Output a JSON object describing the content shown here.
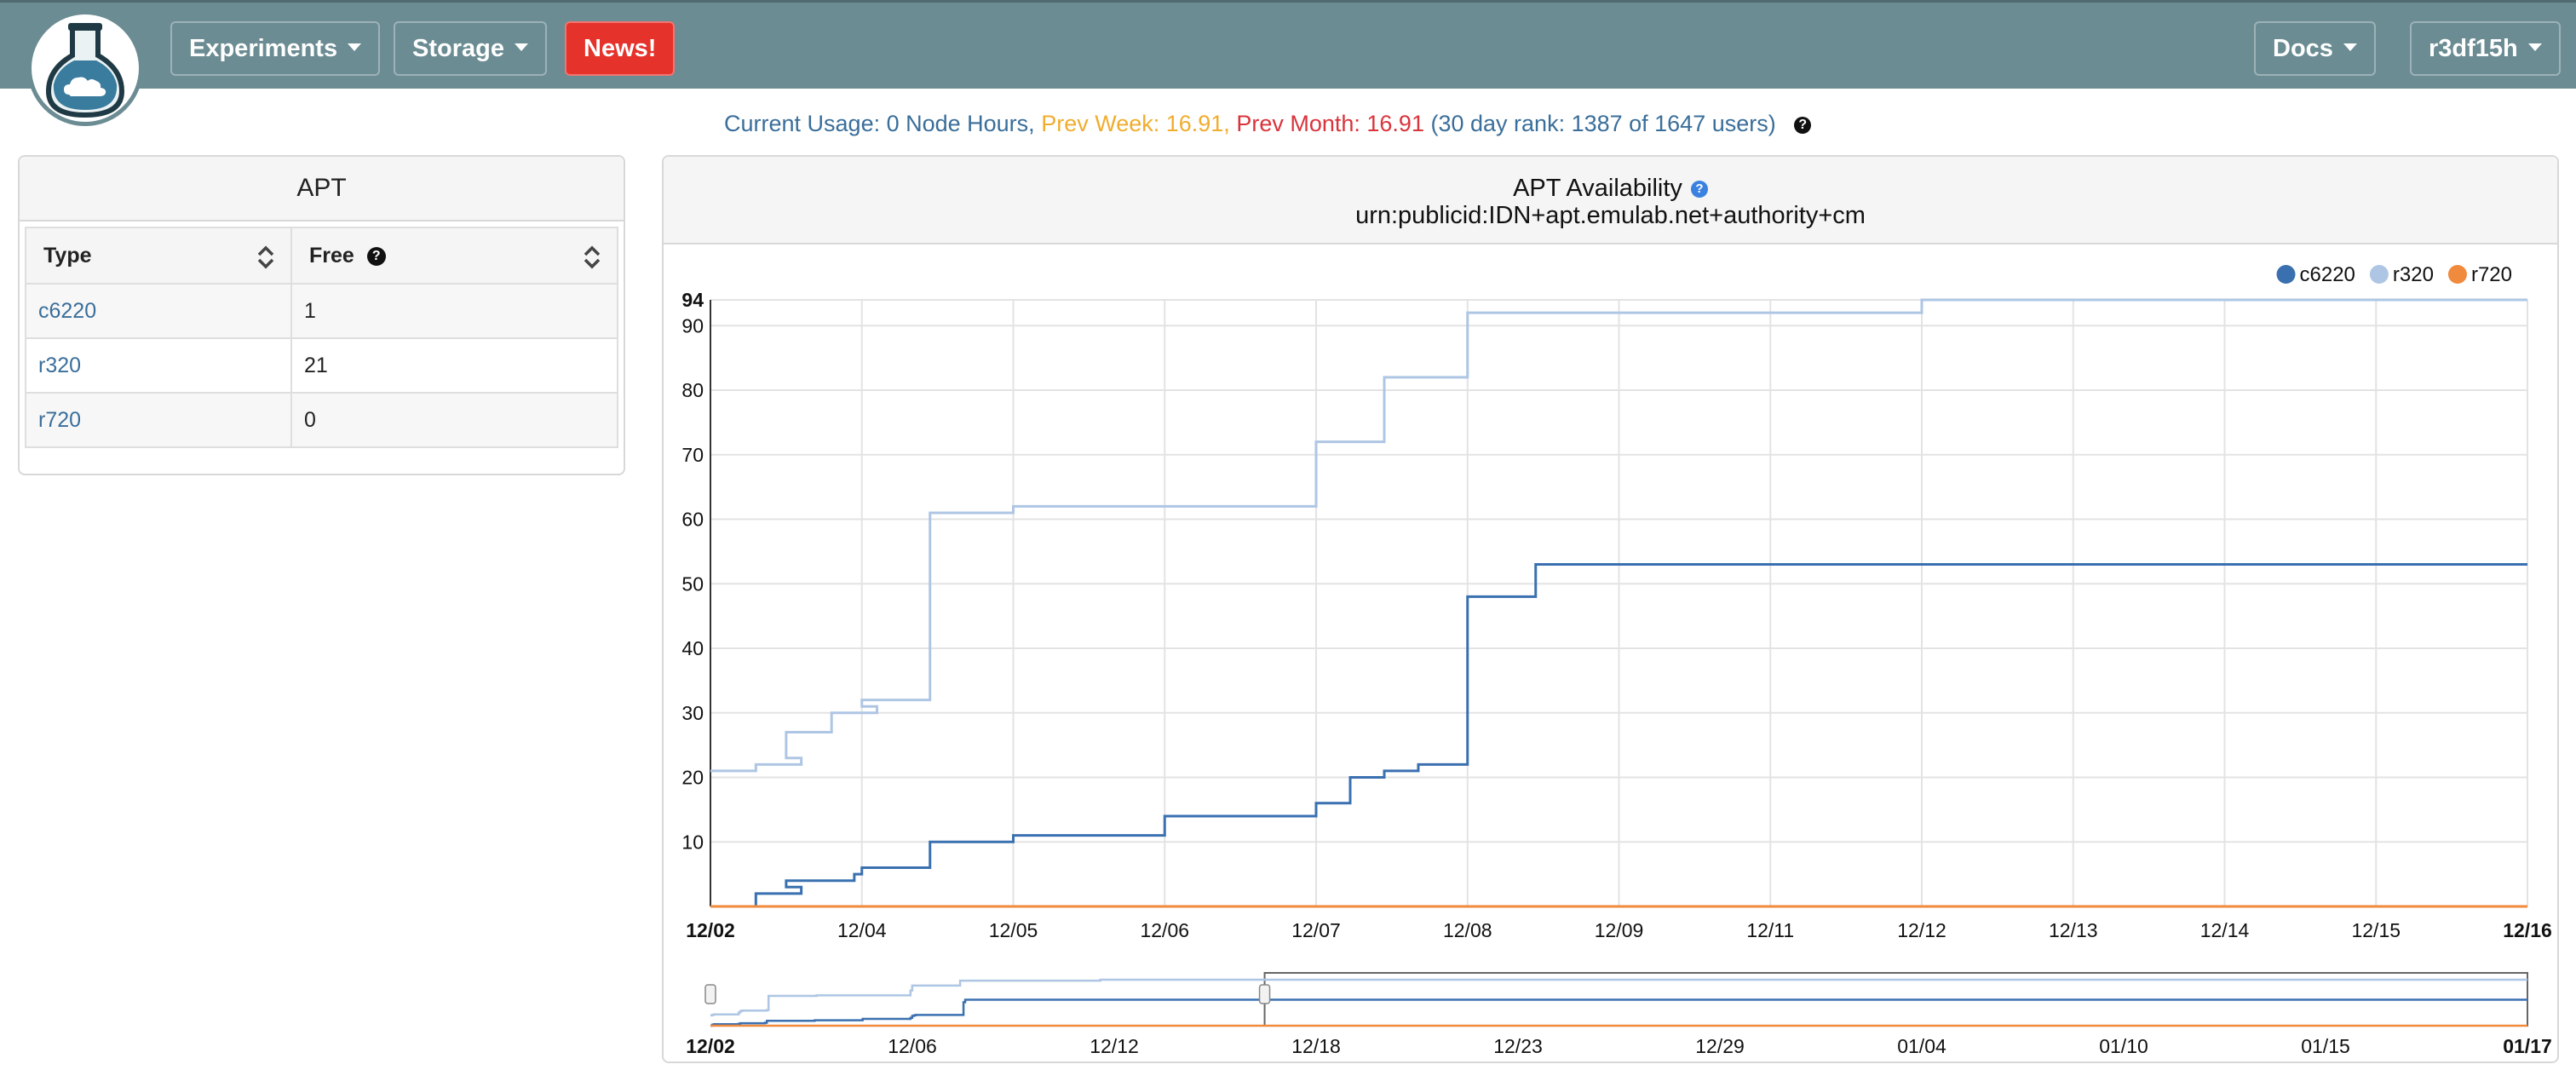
{
  "navbar": {
    "menus": [
      {
        "label": "Experiments"
      },
      {
        "label": "Storage"
      }
    ],
    "news_label": "News!",
    "docs_label": "Docs",
    "user_label": "r3df15h",
    "logo_icon": "flask-cloud-logo",
    "bg_color": "#6b8c93",
    "news_color": "#e5322b"
  },
  "usage": {
    "current": "Current Usage: 0 Node Hours,",
    "prev_week": "Prev Week: 16.91,",
    "prev_month": "Prev Month: 16.91",
    "rank": "(30 day rank: 1387 of 1647 users)",
    "help_icon": "question-circle-icon"
  },
  "left_panel": {
    "title": "APT",
    "columns": [
      "Type",
      "Free"
    ],
    "rows": [
      {
        "type": "c6220",
        "free": "1"
      },
      {
        "type": "r320",
        "free": "21"
      },
      {
        "type": "r720",
        "free": "0"
      }
    ]
  },
  "chart_panel": {
    "title": "APT Availability",
    "subtitle": "urn:publicid:IDN+apt.emulab.net+authority+cm"
  },
  "chart_data": {
    "type": "line",
    "title": "APT Availability",
    "subtitle": "urn:publicid:IDN+apt.emulab.net+authority+cm",
    "step": true,
    "legend_position": "top-right",
    "grid": true,
    "ylim": [
      0,
      94
    ],
    "y_ticks": [
      "94",
      "90",
      "80",
      "70",
      "60",
      "50",
      "40",
      "30",
      "20",
      "10"
    ],
    "x_range": [
      "12/02",
      "12/16"
    ],
    "x_ticks": [
      "12/02",
      "12/04",
      "12/05",
      "12/06",
      "12/07",
      "12/08",
      "12/09",
      "12/11",
      "12/12",
      "12/13",
      "12/14",
      "12/15",
      "12/16"
    ],
    "series": [
      {
        "name": "c6220",
        "color": "#3a70b0",
        "points": [
          [
            "12/02",
            0
          ],
          [
            "12/02",
            2
          ],
          [
            "12/02",
            3
          ],
          [
            "12/03",
            4
          ],
          [
            "12/03",
            5
          ],
          [
            "12/04",
            6
          ],
          [
            "12/04",
            10
          ],
          [
            "12/05",
            11
          ],
          [
            "12/06",
            14
          ],
          [
            "12/07",
            16
          ],
          [
            "12/07",
            20
          ],
          [
            "12/07",
            21
          ],
          [
            "12/07",
            22
          ],
          [
            "12/08",
            48
          ],
          [
            "12/08",
            53
          ],
          [
            "12/16",
            53
          ]
        ]
      },
      {
        "name": "r320",
        "color": "#aec6e4",
        "points": [
          [
            "12/02",
            21
          ],
          [
            "12/02",
            22
          ],
          [
            "12/02",
            23
          ],
          [
            "12/03",
            27
          ],
          [
            "12/03",
            30
          ],
          [
            "12/03",
            31
          ],
          [
            "12/04",
            32
          ],
          [
            "12/04",
            61
          ],
          [
            "12/05",
            62
          ],
          [
            "12/07",
            72
          ],
          [
            "12/07",
            82
          ],
          [
            "12/08",
            92
          ],
          [
            "12/12",
            94
          ],
          [
            "12/16",
            94
          ]
        ]
      },
      {
        "name": "r720",
        "color": "#f08a3c",
        "points": [
          [
            "12/02",
            0
          ],
          [
            "12/16",
            0
          ]
        ]
      }
    ],
    "navigator": {
      "x_ticks": [
        "12/02",
        "12/06",
        "12/12",
        "12/18",
        "12/23",
        "12/29",
        "01/04",
        "01/10",
        "01/15",
        "01/17"
      ],
      "selected_range": [
        "12/02",
        "12/16"
      ]
    }
  }
}
